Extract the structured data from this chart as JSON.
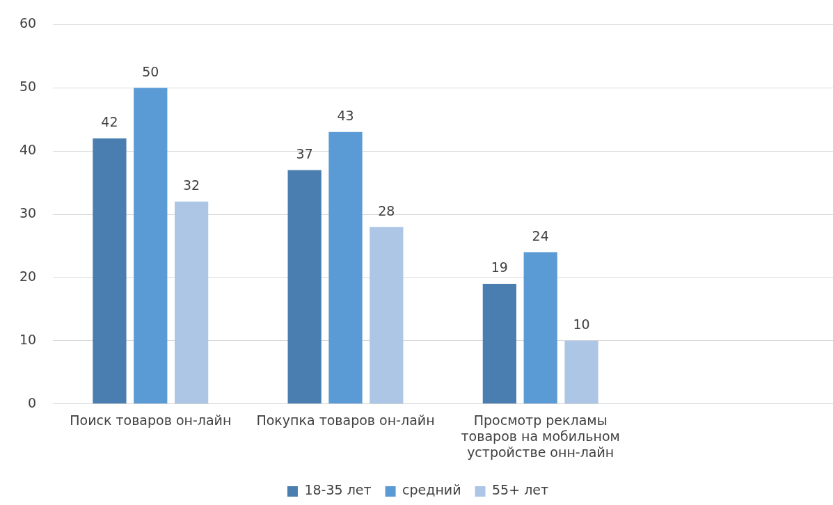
{
  "chart_data": {
    "type": "bar",
    "categories": [
      "Поиск товаров он-лайн",
      "Покупка товаров он-лайн",
      "Просмотр рекламы товаров на мобильном устройстве онн-лайн",
      null
    ],
    "series": [
      {
        "name": "18-35 лет",
        "color": "#4a7eb0",
        "values": [
          42,
          37,
          19,
          null
        ]
      },
      {
        "name": "средний",
        "color": "#5b9bd5",
        "values": [
          50,
          43,
          24,
          null
        ]
      },
      {
        "name": "55+ лет",
        "color": "#adc6e5",
        "values": [
          32,
          28,
          10,
          null
        ]
      }
    ],
    "ylim": [
      0,
      60
    ],
    "yticks": [
      0,
      10,
      20,
      30,
      40,
      50,
      60
    ],
    "grid": "y",
    "legend": "bottom",
    "data_labels": true
  }
}
